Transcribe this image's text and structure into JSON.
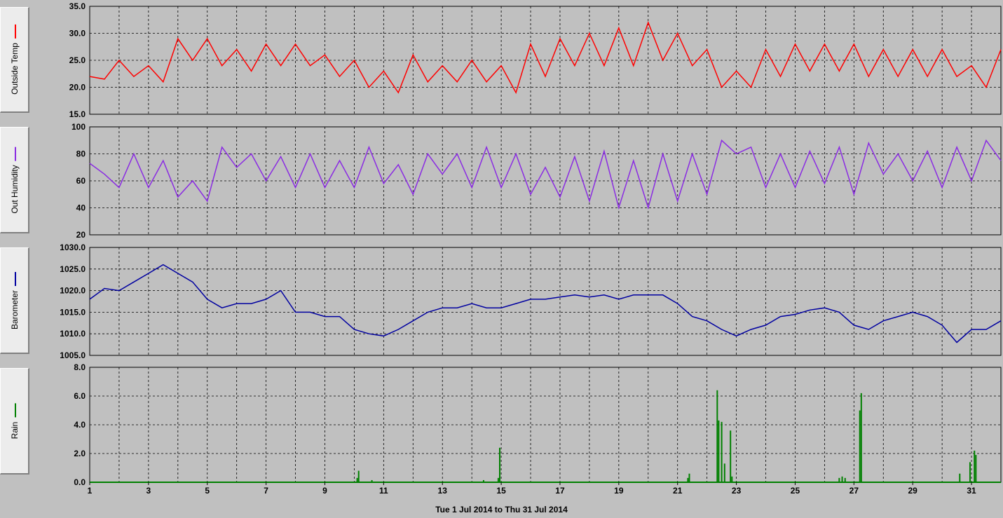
{
  "panels": [
    {
      "label": "Outside Temp",
      "color": "#ff0000",
      "ylim": [
        15,
        35
      ],
      "ticks": [
        "35.0",
        "30.0",
        "25.0",
        "20.0",
        "15.0"
      ]
    },
    {
      "label": "Out Humidity",
      "color": "#8a2be2",
      "ylim": [
        20,
        100
      ],
      "ticks": [
        "100",
        "80",
        "60",
        "40",
        "20"
      ]
    },
    {
      "label": "Barometer",
      "color": "#0000a0",
      "ylim": [
        1005,
        1030
      ],
      "ticks": [
        "1030.0",
        "1025.0",
        "1020.0",
        "1015.0",
        "1010.0",
        "1005.0"
      ]
    },
    {
      "label": "Rain",
      "color": "#008000",
      "ylim": [
        0,
        8
      ],
      "ticks": [
        "8.0",
        "6.0",
        "4.0",
        "2.0",
        "0.0"
      ]
    }
  ],
  "x_ticks": [
    "1",
    "3",
    "5",
    "7",
    "9",
    "11",
    "13",
    "15",
    "17",
    "19",
    "21",
    "23",
    "25",
    "27",
    "29",
    "31"
  ],
  "footer": "Tue 1 Jul 2014  to  Thu 31 Jul 2014",
  "chart_data": [
    {
      "type": "line",
      "title": "",
      "ylabel": "Outside Temp",
      "xlim": [
        1,
        32
      ],
      "ylim": [
        15,
        35
      ],
      "series": [
        {
          "name": "Outside Temp",
          "color": "#ff0000",
          "x": [
            1,
            1.5,
            2,
            2.5,
            3,
            3.5,
            4,
            4.5,
            5,
            5.5,
            6,
            6.5,
            7,
            7.5,
            8,
            8.5,
            9,
            9.5,
            10,
            10.5,
            11,
            11.5,
            12,
            12.5,
            13,
            13.5,
            14,
            14.5,
            15,
            15.5,
            16,
            16.5,
            17,
            17.5,
            18,
            18.5,
            19,
            19.5,
            20,
            20.5,
            21,
            21.5,
            22,
            22.5,
            23,
            23.5,
            24,
            24.5,
            25,
            25.5,
            26,
            26.5,
            27,
            27.5,
            28,
            28.5,
            29,
            29.5,
            30,
            30.5,
            31,
            31.5,
            32
          ],
          "values": [
            22,
            21.5,
            25,
            22,
            24,
            21,
            29,
            25,
            29,
            24,
            27,
            23,
            28,
            24,
            28,
            24,
            26,
            22,
            25,
            20,
            23,
            19,
            26,
            21,
            24,
            21,
            25,
            21,
            24,
            19,
            28,
            22,
            29,
            24,
            30,
            24,
            31,
            24,
            32,
            25,
            30,
            24,
            27,
            20,
            23,
            20,
            27,
            22,
            28,
            23,
            28,
            23,
            28,
            22,
            27,
            22,
            27,
            22,
            27,
            22,
            24,
            20,
            27
          ]
        }
      ]
    },
    {
      "type": "line",
      "title": "",
      "ylabel": "Out Humidity",
      "xlim": [
        1,
        32
      ],
      "ylim": [
        20,
        100
      ],
      "series": [
        {
          "name": "Out Humidity",
          "color": "#8a2be2",
          "x": [
            1,
            1.5,
            2,
            2.5,
            3,
            3.5,
            4,
            4.5,
            5,
            5.5,
            6,
            6.5,
            7,
            7.5,
            8,
            8.5,
            9,
            9.5,
            10,
            10.5,
            11,
            11.5,
            12,
            12.5,
            13,
            13.5,
            14,
            14.5,
            15,
            15.5,
            16,
            16.5,
            17,
            17.5,
            18,
            18.5,
            19,
            19.5,
            20,
            20.5,
            21,
            21.5,
            22,
            22.5,
            23,
            23.5,
            24,
            24.5,
            25,
            25.5,
            26,
            26.5,
            27,
            27.5,
            28,
            28.5,
            29,
            29.5,
            30,
            30.5,
            31,
            31.5,
            32
          ],
          "values": [
            73,
            65,
            55,
            80,
            55,
            75,
            48,
            60,
            45,
            85,
            70,
            80,
            60,
            78,
            55,
            80,
            55,
            75,
            55,
            85,
            58,
            72,
            50,
            80,
            65,
            80,
            55,
            85,
            55,
            80,
            50,
            70,
            48,
            78,
            45,
            82,
            40,
            75,
            40,
            80,
            45,
            80,
            50,
            90,
            80,
            85,
            55,
            80,
            55,
            82,
            58,
            85,
            50,
            88,
            65,
            80,
            60,
            82,
            55,
            85,
            60,
            90,
            75
          ]
        }
      ]
    },
    {
      "type": "line",
      "title": "",
      "ylabel": "Barometer",
      "xlim": [
        1,
        32
      ],
      "ylim": [
        1005,
        1030
      ],
      "series": [
        {
          "name": "Barometer",
          "color": "#0000a0",
          "x": [
            1,
            1.5,
            2,
            2.5,
            3,
            3.5,
            4,
            4.5,
            5,
            5.5,
            6,
            6.5,
            7,
            7.5,
            8,
            8.5,
            9,
            9.5,
            10,
            10.5,
            11,
            11.5,
            12,
            12.5,
            13,
            13.5,
            14,
            14.5,
            15,
            15.5,
            16,
            16.5,
            17,
            17.5,
            18,
            18.5,
            19,
            19.5,
            20,
            20.5,
            21,
            21.5,
            22,
            22.5,
            23,
            23.5,
            24,
            24.5,
            25,
            25.5,
            26,
            26.5,
            27,
            27.5,
            28,
            28.5,
            29,
            29.5,
            30,
            30.5,
            31,
            31.5,
            32
          ],
          "values": [
            1018,
            1020.5,
            1020,
            1022,
            1024,
            1026,
            1024,
            1022,
            1018,
            1016,
            1017,
            1017,
            1018,
            1020,
            1015,
            1015,
            1014,
            1014,
            1011,
            1010,
            1009.5,
            1011,
            1013,
            1015,
            1016,
            1016,
            1017,
            1016,
            1016,
            1017,
            1018,
            1018,
            1018.5,
            1019,
            1018.5,
            1019,
            1018,
            1019,
            1019,
            1019,
            1017,
            1014,
            1013,
            1011,
            1009.5,
            1011,
            1012,
            1014,
            1014.5,
            1015.5,
            1016,
            1015,
            1012,
            1011,
            1013,
            1014,
            1015,
            1014,
            1012,
            1008,
            1011,
            1011,
            1013
          ]
        }
      ]
    },
    {
      "type": "bar",
      "title": "",
      "ylabel": "Rain",
      "xlim": [
        1,
        32
      ],
      "ylim": [
        0,
        8
      ],
      "series": [
        {
          "name": "Rain",
          "color": "#008000",
          "x": [
            10.1,
            10.15,
            10.6,
            14.4,
            14.9,
            14.95,
            21.35,
            21.4,
            22.35,
            22.4,
            22.5,
            22.6,
            22.8,
            22.85,
            26.5,
            26.6,
            26.7,
            27.2,
            27.25,
            30.6,
            30.95,
            31.1,
            31.15
          ],
          "values": [
            0.3,
            0.8,
            0.15,
            0.15,
            0.3,
            2.4,
            0.3,
            0.6,
            6.4,
            4.3,
            4.2,
            1.3,
            3.6,
            0.4,
            0.3,
            0.4,
            0.3,
            5.0,
            6.2,
            0.6,
            1.4,
            2.2,
            1.9
          ]
        }
      ]
    }
  ]
}
